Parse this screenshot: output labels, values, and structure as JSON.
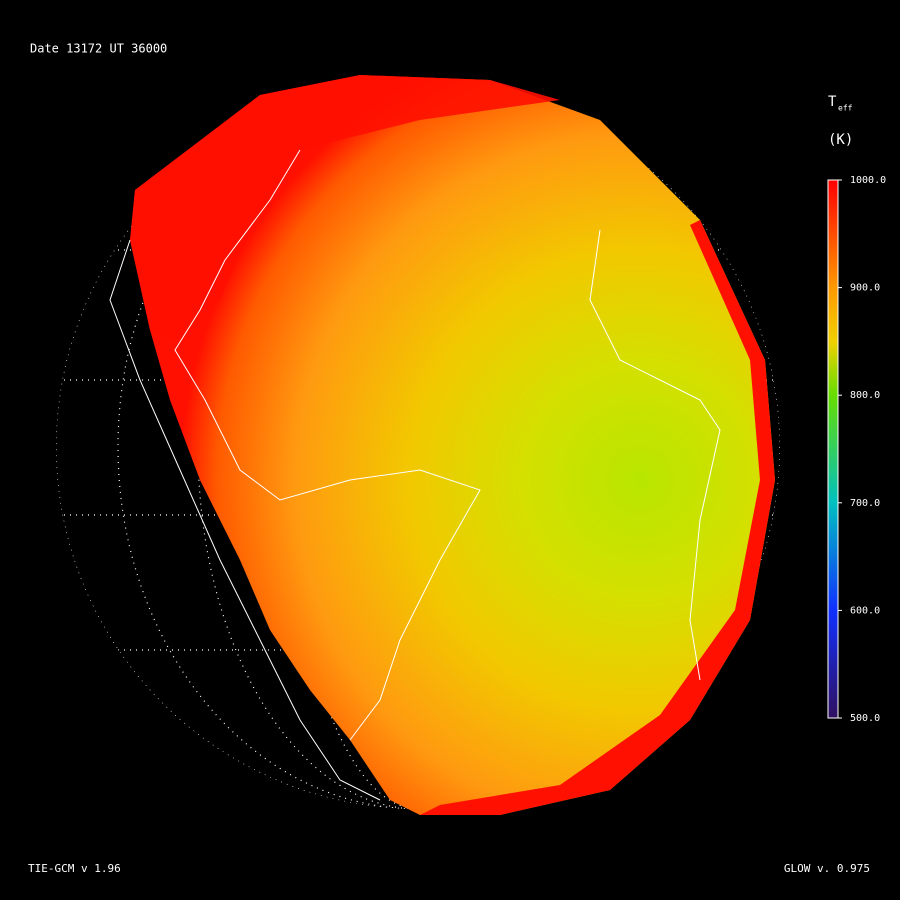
{
  "header": {
    "date_line": "Date 13172  UT 36000"
  },
  "colorbar": {
    "title": "T",
    "subscript": "eff",
    "unit": "(K)",
    "lim": [
      500,
      1000
    ],
    "ticks": [
      {
        "value": 1000,
        "label": "1000.0"
      },
      {
        "value": 900,
        "label": "900.0"
      },
      {
        "value": 800,
        "label": "800.0"
      },
      {
        "value": 700,
        "label": "700.0"
      },
      {
        "value": 600,
        "label": "600.0"
      },
      {
        "value": 500,
        "label": "500.0"
      }
    ]
  },
  "footer": {
    "left": "TIE-GCM v 1.96",
    "right": "GLOW v. 0.975"
  }
}
